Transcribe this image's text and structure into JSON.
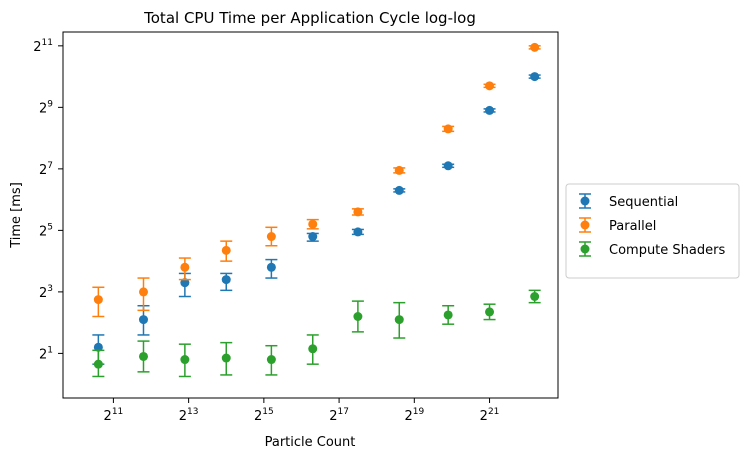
{
  "chart_data": {
    "type": "scatter",
    "title": "Total CPU Time per Application Cycle log-log",
    "xlabel": "Particle Count",
    "ylabel": "Time [ms]",
    "xscale": "log2",
    "yscale": "log2",
    "xlim_log2": [
      9.66,
      22.82
    ],
    "ylim_log2": [
      -0.45,
      11.45
    ],
    "x_ticks": [
      {
        "exp": 11,
        "label": "2",
        "sup": "11"
      },
      {
        "exp": 13,
        "label": "2",
        "sup": "13"
      },
      {
        "exp": 15,
        "label": "2",
        "sup": "15"
      },
      {
        "exp": 17,
        "label": "2",
        "sup": "17"
      },
      {
        "exp": 19,
        "label": "2",
        "sup": "19"
      },
      {
        "exp": 21,
        "label": "2",
        "sup": "21"
      }
    ],
    "y_ticks": [
      {
        "exp": 1,
        "label": "2",
        "sup": "1"
      },
      {
        "exp": 3,
        "label": "2",
        "sup": "3"
      },
      {
        "exp": 5,
        "label": "2",
        "sup": "5"
      },
      {
        "exp": 7,
        "label": "2",
        "sup": "7"
      },
      {
        "exp": 9,
        "label": "2",
        "sup": "9"
      },
      {
        "exp": 11,
        "label": "2",
        "sup": "11"
      }
    ],
    "grid": false,
    "legend_position": "center-right-outside",
    "x_log2": [
      10.6,
      11.8,
      12.9,
      14.0,
      15.2,
      16.3,
      17.5,
      18.6,
      19.9,
      21.0,
      22.2
    ],
    "series": [
      {
        "name": "Sequential",
        "color": "#1f77b4",
        "y_log2": [
          1.2,
          2.1,
          3.3,
          3.4,
          3.8,
          4.8,
          4.95,
          6.3,
          7.1,
          8.9,
          10.0
        ],
        "err_lo": [
          0.55,
          0.5,
          0.45,
          0.35,
          0.35,
          0.15,
          0.08,
          0.05,
          0.05,
          0.05,
          0.05
        ],
        "err_hi": [
          0.4,
          0.45,
          0.3,
          0.2,
          0.25,
          0.1,
          0.08,
          0.05,
          0.05,
          0.05,
          0.05
        ]
      },
      {
        "name": "Parallel",
        "color": "#ff7f0e",
        "y_log2": [
          2.75,
          3.0,
          3.8,
          4.35,
          4.8,
          5.2,
          5.6,
          6.95,
          8.3,
          9.7,
          10.95
        ],
        "err_lo": [
          0.55,
          0.6,
          0.4,
          0.35,
          0.3,
          0.15,
          0.1,
          0.08,
          0.08,
          0.05,
          0.05
        ],
        "err_hi": [
          0.4,
          0.45,
          0.3,
          0.3,
          0.3,
          0.15,
          0.1,
          0.08,
          0.08,
          0.05,
          0.05
        ]
      },
      {
        "name": "Compute Shaders",
        "color": "#2ca02c",
        "y_log2": [
          0.65,
          0.9,
          0.8,
          0.85,
          0.8,
          1.15,
          2.2,
          2.1,
          2.25,
          2.35,
          2.85
        ],
        "err_lo": [
          0.4,
          0.5,
          0.55,
          0.55,
          0.5,
          0.5,
          0.5,
          0.6,
          0.3,
          0.25,
          0.2
        ],
        "err_hi": [
          0.45,
          0.5,
          0.5,
          0.5,
          0.45,
          0.45,
          0.5,
          0.55,
          0.3,
          0.25,
          0.2
        ]
      }
    ]
  }
}
